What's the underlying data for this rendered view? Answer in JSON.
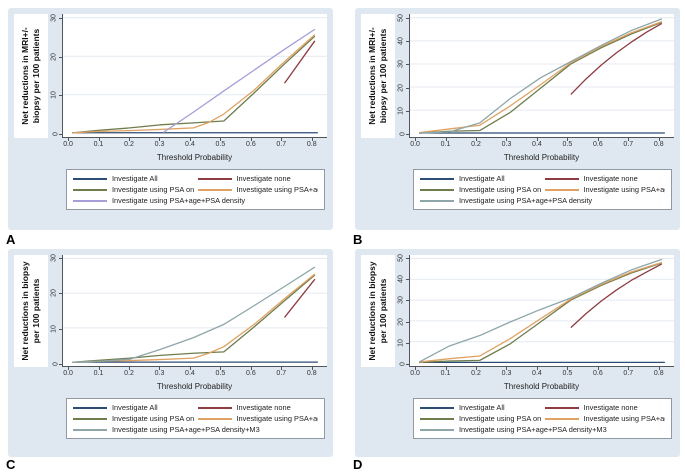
{
  "figure": {
    "colors": {
      "figure_bg": "#ffffff",
      "panel_bg": "#dfe8f1",
      "plot_bg": "#ffffff",
      "gridline": "#e4eaf0",
      "axis": "#50565c",
      "navy": "#2b4d76",
      "maroon": "#8e3b41",
      "olive": "#6f7c4b",
      "orange": "#dfa263",
      "lavender": "#a69ed7",
      "slate": "#8ea6a9"
    }
  },
  "chart_data": [
    {
      "type": "line",
      "letter": "A",
      "title": "",
      "ylabel_lines": [
        "Net reductions in MRI+/-",
        "biopsy per 100 patients"
      ],
      "xlabel": "Threshold Probability",
      "ylim": [
        0,
        30
      ],
      "xlim": [
        -0.02,
        0.85
      ],
      "yticks": [
        0,
        10,
        20,
        30
      ],
      "xticks": [
        "0.0",
        "0.1",
        "0.2",
        "0.3",
        "0.4",
        "0.5",
        "0.6",
        "0.7",
        "0.8"
      ],
      "grid": "horizontal",
      "legend_position": "below",
      "series": [
        {
          "name": "Investigate All",
          "color": "#2b4d76",
          "points": [
            [
              0.01,
              0.15
            ],
            [
              0.82,
              0.15
            ]
          ]
        },
        {
          "name": "Investigate none",
          "color": "#8e3b41",
          "points": [
            [
              0.71,
              13
            ],
            [
              0.81,
              24
            ]
          ]
        },
        {
          "name": "Investigate using PSA only",
          "color": "#6f7c4b",
          "points": [
            [
              0.01,
              0.1
            ],
            [
              0.1,
              0.8
            ],
            [
              0.2,
              1.4
            ],
            [
              0.3,
              2.2
            ],
            [
              0.41,
              2.7
            ],
            [
              0.51,
              3.2
            ],
            [
              0.61,
              10.5
            ],
            [
              0.71,
              18
            ],
            [
              0.81,
              25.2
            ]
          ]
        },
        {
          "name": "Investigate using PSA+age",
          "color": "#dfa263",
          "points": [
            [
              0.01,
              0.1
            ],
            [
              0.1,
              0.5
            ],
            [
              0.2,
              0.7
            ],
            [
              0.3,
              1.0
            ],
            [
              0.41,
              1.4
            ],
            [
              0.46,
              2.8
            ],
            [
              0.51,
              5.0
            ],
            [
              0.61,
              11.2
            ],
            [
              0.71,
              18.6
            ],
            [
              0.81,
              25.6
            ]
          ]
        },
        {
          "name": "Investigate using PSA+age+PSA density",
          "color": "#a69ed7",
          "points": [
            [
              0.31,
              0.2
            ],
            [
              0.41,
              5.5
            ],
            [
              0.51,
              11
            ],
            [
              0.61,
              16.4
            ],
            [
              0.71,
              21.8
            ],
            [
              0.81,
              27
            ]
          ]
        }
      ]
    },
    {
      "type": "line",
      "letter": "B",
      "title": "",
      "ylabel_lines": [
        "Net reductions in MRI+/-",
        "biopsy per 100 patients"
      ],
      "xlabel": "Threshold Probability",
      "ylim": [
        0,
        50
      ],
      "xlim": [
        -0.02,
        0.85
      ],
      "yticks": [
        0,
        10,
        20,
        30,
        40,
        50
      ],
      "xticks": [
        "0.0",
        "0.1",
        "0.2",
        "0.3",
        "0.4",
        "0.5",
        "0.6",
        "0.7",
        "0.8"
      ],
      "grid": "horizontal",
      "legend_position": "below",
      "series": [
        {
          "name": "Investigate All",
          "color": "#2b4d76",
          "points": [
            [
              0.01,
              0.15
            ],
            [
              0.82,
              0.15
            ]
          ]
        },
        {
          "name": "Investigate none",
          "color": "#8e3b41",
          "points": [
            [
              0.51,
              16.8
            ],
            [
              0.56,
              23.5
            ],
            [
              0.61,
              29.5
            ],
            [
              0.66,
              34.8
            ],
            [
              0.71,
              39.5
            ],
            [
              0.76,
              43.8
            ],
            [
              0.81,
              47.5
            ]
          ]
        },
        {
          "name": "Investigate using PSA only",
          "color": "#6f7c4b",
          "points": [
            [
              0.01,
              0.1
            ],
            [
              0.11,
              0.9
            ],
            [
              0.21,
              1.2
            ],
            [
              0.31,
              9
            ],
            [
              0.41,
              19.5
            ],
            [
              0.51,
              30
            ],
            [
              0.61,
              37
            ],
            [
              0.71,
              43
            ],
            [
              0.81,
              48
            ]
          ]
        },
        {
          "name": "Investigate using PSA+age",
          "color": "#dfa263",
          "points": [
            [
              0.01,
              0.3
            ],
            [
              0.11,
              1.9
            ],
            [
              0.21,
              3.5
            ],
            [
              0.31,
              11.8
            ],
            [
              0.41,
              21
            ],
            [
              0.51,
              30.5
            ],
            [
              0.61,
              37.5
            ],
            [
              0.71,
              43.5
            ],
            [
              0.81,
              48.3
            ]
          ]
        },
        {
          "name": "Investigate using PSA+age+PSA density",
          "color": "#8ea6a9",
          "points": [
            [
              0.01,
              0.1
            ],
            [
              0.11,
              0.6
            ],
            [
              0.21,
              4.5
            ],
            [
              0.31,
              15
            ],
            [
              0.41,
              24
            ],
            [
              0.51,
              31
            ],
            [
              0.61,
              38
            ],
            [
              0.71,
              44.5
            ],
            [
              0.81,
              49.5
            ]
          ]
        }
      ]
    },
    {
      "type": "line",
      "letter": "C",
      "title": "",
      "ylabel_lines": [
        "Net reductions in biopsy",
        "per 100 patients"
      ],
      "xlabel": "Threshold Probability",
      "ylim": [
        0,
        30
      ],
      "xlim": [
        -0.02,
        0.85
      ],
      "yticks": [
        0,
        10,
        20,
        30
      ],
      "xticks": [
        "0.0",
        "0.1",
        "0.2",
        "0.3",
        "0.4",
        "0.5",
        "0.6",
        "0.7",
        "0.8"
      ],
      "grid": "horizontal",
      "legend_position": "below",
      "series": [
        {
          "name": "Investigate All",
          "color": "#2b4d76",
          "points": [
            [
              0.01,
              0.15
            ],
            [
              0.82,
              0.15
            ]
          ]
        },
        {
          "name": "Investigate none",
          "color": "#8e3b41",
          "points": [
            [
              0.71,
              13
            ],
            [
              0.81,
              24
            ]
          ]
        },
        {
          "name": "Investigate using PSA only",
          "color": "#6f7c4b",
          "points": [
            [
              0.01,
              0.1
            ],
            [
              0.1,
              0.7
            ],
            [
              0.2,
              1.3
            ],
            [
              0.3,
              2.1
            ],
            [
              0.41,
              2.7
            ],
            [
              0.51,
              3.1
            ],
            [
              0.61,
              10.3
            ],
            [
              0.71,
              17.8
            ],
            [
              0.81,
              25.2
            ]
          ]
        },
        {
          "name": "Investigate using PSA+age",
          "color": "#dfa263",
          "points": [
            [
              0.01,
              0.1
            ],
            [
              0.1,
              0.4
            ],
            [
              0.2,
              0.6
            ],
            [
              0.3,
              0.9
            ],
            [
              0.41,
              1.3
            ],
            [
              0.46,
              2.7
            ],
            [
              0.51,
              4.6
            ],
            [
              0.61,
              11
            ],
            [
              0.71,
              18.4
            ],
            [
              0.81,
              25.5
            ]
          ]
        },
        {
          "name": "Investigate using PSA+age+PSA density+M3",
          "color": "#8ea6a9",
          "points": [
            [
              0.01,
              0.1
            ],
            [
              0.1,
              0.4
            ],
            [
              0.2,
              1.0
            ],
            [
              0.3,
              3.8
            ],
            [
              0.41,
              7.2
            ],
            [
              0.51,
              11
            ],
            [
              0.61,
              16.4
            ],
            [
              0.71,
              21.9
            ],
            [
              0.81,
              27.5
            ]
          ]
        }
      ]
    },
    {
      "type": "line",
      "letter": "D",
      "title": "",
      "ylabel_lines": [
        "Net reductions in biopsy",
        "per 100 patients"
      ],
      "xlabel": "Threshold Probability",
      "ylim": [
        0,
        50
      ],
      "xlim": [
        -0.02,
        0.85
      ],
      "yticks": [
        0,
        10,
        20,
        30,
        40,
        50
      ],
      "xticks": [
        "0.0",
        "0.1",
        "0.2",
        "0.3",
        "0.4",
        "0.5",
        "0.6",
        "0.7",
        "0.8"
      ],
      "grid": "horizontal",
      "legend_position": "below",
      "series": [
        {
          "name": "Investigate All",
          "color": "#2b4d76",
          "points": [
            [
              0.01,
              0.15
            ],
            [
              0.82,
              0.15
            ]
          ]
        },
        {
          "name": "Investigate none",
          "color": "#8e3b41",
          "points": [
            [
              0.51,
              16.8
            ],
            [
              0.56,
              23.5
            ],
            [
              0.61,
              29.5
            ],
            [
              0.66,
              34.8
            ],
            [
              0.71,
              39.5
            ],
            [
              0.76,
              43.5
            ],
            [
              0.81,
              47.3
            ]
          ]
        },
        {
          "name": "Investigate using PSA only",
          "color": "#6f7c4b",
          "points": [
            [
              0.01,
              0.1
            ],
            [
              0.11,
              0.8
            ],
            [
              0.21,
              1.1
            ],
            [
              0.31,
              9
            ],
            [
              0.41,
              19.5
            ],
            [
              0.51,
              30
            ],
            [
              0.61,
              37
            ],
            [
              0.71,
              43
            ],
            [
              0.81,
              47.8
            ]
          ]
        },
        {
          "name": "Investigate using PSA+age",
          "color": "#dfa263",
          "points": [
            [
              0.01,
              0.3
            ],
            [
              0.11,
              1.9
            ],
            [
              0.21,
              3.2
            ],
            [
              0.31,
              11.5
            ],
            [
              0.41,
              21
            ],
            [
              0.51,
              30.5
            ],
            [
              0.61,
              37.5
            ],
            [
              0.71,
              43.5
            ],
            [
              0.81,
              48
            ]
          ]
        },
        {
          "name": "Investigate using PSA+age+PSA density+M3",
          "color": "#8ea6a9",
          "points": [
            [
              0.01,
              0.3
            ],
            [
              0.11,
              8
            ],
            [
              0.21,
              13
            ],
            [
              0.31,
              19.5
            ],
            [
              0.41,
              25.5
            ],
            [
              0.51,
              31
            ],
            [
              0.61,
              38
            ],
            [
              0.71,
              44.5
            ],
            [
              0.81,
              49.5
            ]
          ]
        }
      ]
    }
  ]
}
